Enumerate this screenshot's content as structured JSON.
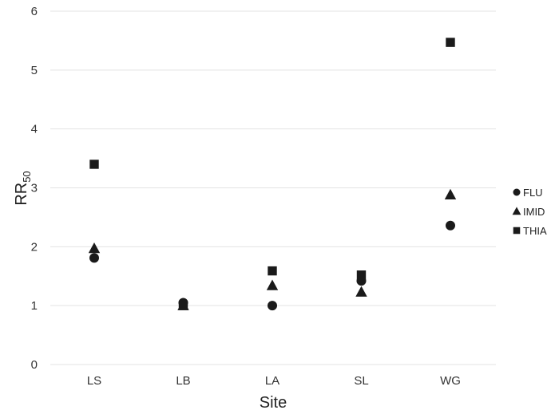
{
  "chart_data": {
    "type": "scatter",
    "title": "",
    "xlabel": "Site",
    "ylabel_main": "RR",
    "ylabel_sub": "50",
    "categories": [
      "LS",
      "LB",
      "LA",
      "SL",
      "WG"
    ],
    "ylim": [
      0,
      6
    ],
    "yticks": [
      0,
      1,
      2,
      3,
      4,
      5,
      6
    ],
    "grid": true,
    "legend_position": "right",
    "series": [
      {
        "name": "FLU",
        "marker": "circle",
        "color": "#1a1a1a",
        "values": [
          1.81,
          1.05,
          1.0,
          1.42,
          2.36
        ]
      },
      {
        "name": "IMID",
        "marker": "triangle",
        "color": "#1a1a1a",
        "values": [
          1.97,
          1.0,
          1.34,
          1.23,
          2.88
        ]
      },
      {
        "name": "THIA",
        "marker": "square",
        "color": "#1a1a1a",
        "values": [
          3.4,
          1.0,
          1.59,
          1.52,
          5.47
        ]
      }
    ]
  }
}
